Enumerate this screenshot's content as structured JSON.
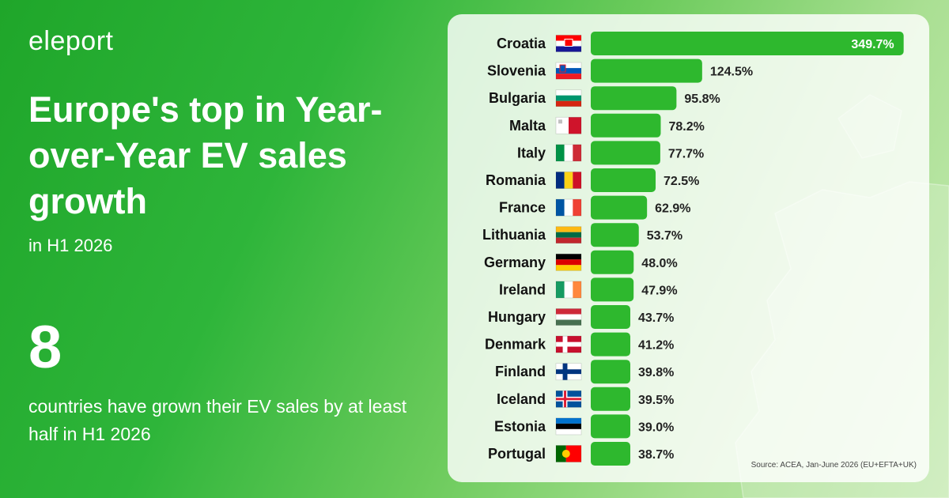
{
  "brand": {
    "logo_text": "eleport"
  },
  "header": {
    "title": "Europe's top in Year-over-Year EV sales growth",
    "subtitle": "in H1 2026"
  },
  "stat": {
    "number": "8",
    "text": "countries have grown their EV sales by at least half in H1 2026"
  },
  "source": "Source: ACEA, Jan-June 2026 (EU+EFTA+UK)",
  "colors": {
    "bar": "#2eb82e",
    "accent": "#22a32a",
    "panel": "#ffffff"
  },
  "chart_data": {
    "type": "bar",
    "orientation": "horizontal",
    "unit": "%",
    "categories": [
      "Croatia",
      "Slovenia",
      "Bulgaria",
      "Malta",
      "Italy",
      "Romania",
      "France",
      "Lithuania",
      "Germany",
      "Ireland",
      "Hungary",
      "Denmark",
      "Finland",
      "Iceland",
      "Estonia",
      "Portugal"
    ],
    "values": [
      349.7,
      124.5,
      95.8,
      78.2,
      77.7,
      72.5,
      62.9,
      53.7,
      48.0,
      47.9,
      43.7,
      41.2,
      39.8,
      39.5,
      39.0,
      38.7
    ],
    "value_labels": [
      "349.7%",
      "124.5%",
      "95.8%",
      "78.2%",
      "77.7%",
      "72.5%",
      "62.9%",
      "53.7%",
      "48.0%",
      "47.9%",
      "43.7%",
      "41.2%",
      "39.8%",
      "39.5%",
      "39.0%",
      "38.7%"
    ],
    "flags": [
      "croatia-flag",
      "slovenia-flag",
      "bulgaria-flag",
      "malta-flag",
      "italy-flag",
      "romania-flag",
      "france-flag",
      "lithuania-flag",
      "germany-flag",
      "ireland-flag",
      "hungary-flag",
      "denmark-flag",
      "finland-flag",
      "iceland-flag",
      "estonia-flag",
      "portugal-flag"
    ],
    "xlim": [
      0,
      350
    ]
  }
}
